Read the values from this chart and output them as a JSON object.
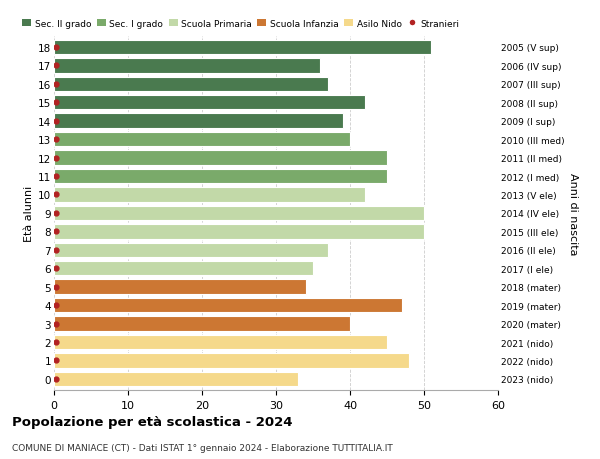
{
  "ages": [
    18,
    17,
    16,
    15,
    14,
    13,
    12,
    11,
    10,
    9,
    8,
    7,
    6,
    5,
    4,
    3,
    2,
    1,
    0
  ],
  "years": [
    "2005 (V sup)",
    "2006 (IV sup)",
    "2007 (III sup)",
    "2008 (II sup)",
    "2009 (I sup)",
    "2010 (III med)",
    "2011 (II med)",
    "2012 (I med)",
    "2013 (V ele)",
    "2014 (IV ele)",
    "2015 (III ele)",
    "2016 (II ele)",
    "2017 (I ele)",
    "2018 (mater)",
    "2019 (mater)",
    "2020 (mater)",
    "2021 (nido)",
    "2022 (nido)",
    "2023 (nido)"
  ],
  "values": [
    51,
    36,
    37,
    42,
    39,
    40,
    45,
    45,
    42,
    50,
    50,
    37,
    35,
    34,
    47,
    40,
    45,
    48,
    33
  ],
  "colors": [
    "#4a7a4f",
    "#4a7a4f",
    "#4a7a4f",
    "#4a7a4f",
    "#4a7a4f",
    "#7aaa6a",
    "#7aaa6a",
    "#7aaa6a",
    "#c2d9a8",
    "#c2d9a8",
    "#c2d9a8",
    "#c2d9a8",
    "#c2d9a8",
    "#cc7733",
    "#cc7733",
    "#cc7733",
    "#f5d98b",
    "#f5d98b",
    "#f5d98b"
  ],
  "legend_labels": [
    "Sec. II grado",
    "Sec. I grado",
    "Scuola Primaria",
    "Scuola Infanzia",
    "Asilo Nido",
    "Stranieri"
  ],
  "legend_colors": [
    "#4a7a4f",
    "#7aaa6a",
    "#c2d9a8",
    "#cc7733",
    "#f5d98b",
    "#b22222"
  ],
  "dot_color": "#b22222",
  "title": "Popolazione per età scolastica - 2024",
  "subtitle": "COMUNE DI MANIACE (CT) - Dati ISTAT 1° gennaio 2024 - Elaborazione TUTTITALIA.IT",
  "ylabel_left": "Età alunni",
  "ylabel_right": "Anni di nascita",
  "xlim": [
    0,
    60
  ],
  "xticks": [
    0,
    10,
    20,
    30,
    40,
    50,
    60
  ],
  "bg_color": "#ffffff",
  "grid_color": "#cccccc",
  "bar_height": 0.78
}
